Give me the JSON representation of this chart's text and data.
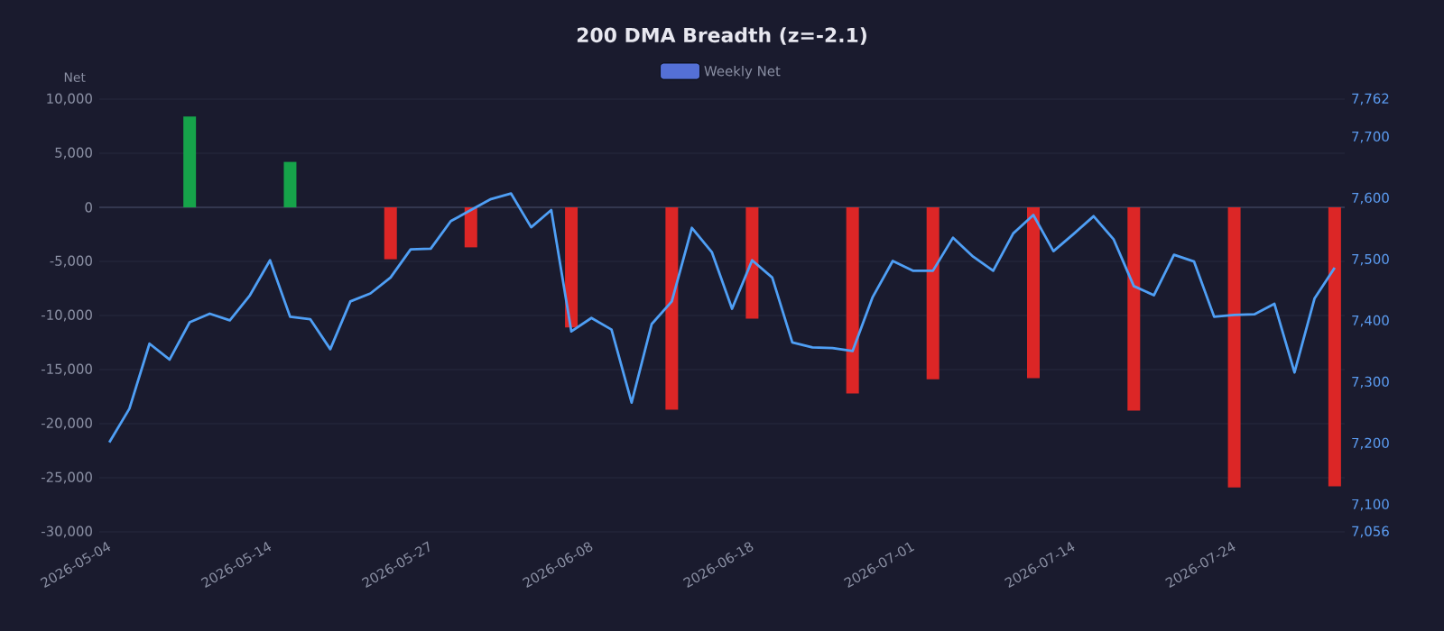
{
  "chart_data": {
    "type": "bar",
    "title": "200 DMA Breadth (z=-2.1)",
    "ylabel": "Net",
    "categories": [
      "2026-05-04",
      null,
      null,
      null,
      null,
      null,
      null,
      null,
      "2026-05-14",
      null,
      null,
      null,
      null,
      null,
      null,
      null,
      "2026-05-27",
      null,
      null,
      null,
      null,
      null,
      null,
      null,
      "2026-06-08",
      null,
      null,
      null,
      null,
      null,
      null,
      null,
      "2026-06-18",
      null,
      null,
      null,
      null,
      null,
      null,
      null,
      "2026-07-01",
      null,
      null,
      null,
      null,
      null,
      null,
      null,
      "2026-07-14",
      null,
      null,
      null,
      null,
      null,
      null,
      null,
      "2026-07-24",
      null,
      null,
      null,
      null,
      null
    ],
    "series": [
      {
        "name": "Weekly Net",
        "color": "#5470d6",
        "colors": [
          null,
          null,
          null,
          null,
          "#16a34a",
          null,
          null,
          null,
          null,
          "#16a34a",
          null,
          null,
          null,
          null,
          "#dc2626",
          null,
          null,
          null,
          "#dc2626",
          null,
          null,
          null,
          null,
          "#dc2626",
          null,
          null,
          null,
          null,
          "#dc2626",
          null,
          null,
          null,
          "#dc2626",
          null,
          null,
          null,
          null,
          "#dc2626",
          null,
          null,
          null,
          "#dc2626",
          null,
          null,
          null,
          null,
          "#dc2626",
          null,
          null,
          null,
          null,
          "#dc2626",
          null,
          null,
          null,
          null,
          "#dc2626",
          null,
          null,
          null,
          null,
          "#dc2626"
        ],
        "values": [
          null,
          null,
          null,
          null,
          8400,
          null,
          null,
          null,
          null,
          4200,
          null,
          null,
          null,
          null,
          -4800,
          null,
          null,
          null,
          -3700,
          null,
          null,
          null,
          null,
          -11100,
          null,
          null,
          null,
          null,
          -18700,
          null,
          null,
          null,
          -10300,
          null,
          null,
          null,
          null,
          -17200,
          null,
          null,
          null,
          -15900,
          null,
          null,
          null,
          null,
          -15800,
          null,
          null,
          null,
          null,
          -18800,
          null,
          null,
          null,
          null,
          -25900,
          null,
          null,
          null,
          null,
          -25800
        ]
      },
      {
        "type": "line",
        "axis": "y2",
        "color": "#4f9ff5",
        "values": [
          7202,
          7257,
          7363,
          7337,
          7398,
          7412,
          7401,
          7442,
          7499,
          7407,
          7403,
          7354,
          7432,
          7445,
          7471,
          7517,
          7518,
          7563,
          7581,
          7599,
          7608,
          7553,
          7581,
          7383,
          7405,
          7386,
          7267,
          7395,
          7432,
          7552,
          7512,
          7420,
          7499,
          7471,
          7365,
          7357,
          7356,
          7351,
          7439,
          7498,
          7482,
          7482,
          7536,
          7505,
          7482,
          7543,
          7573,
          7514,
          7542,
          7571,
          7533,
          7457,
          7442,
          7508,
          7497,
          7407,
          7410,
          7411,
          7428,
          7316,
          7437,
          7487
        ]
      }
    ],
    "ylim": [
      -30000,
      10000
    ],
    "yticks": [
      {
        "value": -30000,
        "label": "-30,000"
      },
      {
        "value": -25000,
        "label": "-25,000"
      },
      {
        "value": -20000,
        "label": "-20,000"
      },
      {
        "value": -15000,
        "label": "-15,000"
      },
      {
        "value": -10000,
        "label": "-10,000"
      },
      {
        "value": -5000,
        "label": "-5,000"
      },
      0,
      {
        "value": 5000,
        "label": "5,000"
      },
      {
        "value": 10000,
        "label": "10,000"
      }
    ],
    "y2lim": [
      7056,
      7762
    ],
    "y2ticks": [
      {
        "value": 7056,
        "label": "7,056"
      },
      {
        "value": 7100,
        "label": "7,100"
      },
      {
        "value": 7200,
        "label": "7,200"
      },
      {
        "value": 7300,
        "label": "7,300"
      },
      {
        "value": 7400,
        "label": "7,400"
      },
      {
        "value": 7500,
        "label": "7,500"
      },
      {
        "value": 7600,
        "label": "7,600"
      },
      {
        "value": 7700,
        "label": "7,700"
      },
      {
        "value": 7762,
        "label": "7,762"
      }
    ],
    "grid": "y",
    "legend": "top"
  }
}
